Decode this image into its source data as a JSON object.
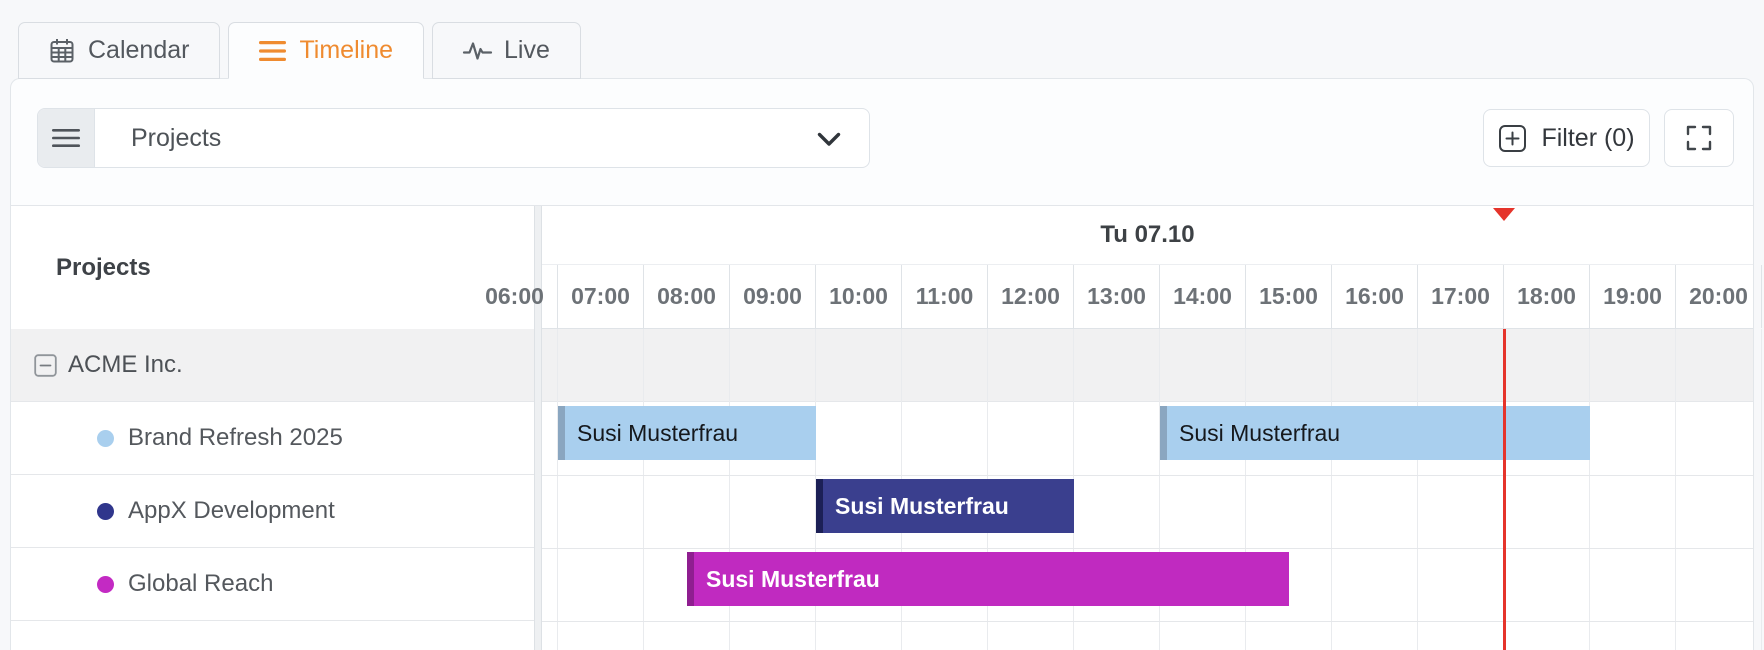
{
  "tabs": [
    {
      "label": "Calendar",
      "icon": "calendar-icon",
      "active": false
    },
    {
      "label": "Timeline",
      "icon": "timeline-icon",
      "active": true
    },
    {
      "label": "Live",
      "icon": "live-icon",
      "active": false
    }
  ],
  "toolbar": {
    "view_selector_value": "Projects",
    "filter_label": "Filter (0)",
    "filter_count": 0
  },
  "left_panel": {
    "title": "Projects",
    "group": {
      "name": "ACME Inc.",
      "expanded": true
    },
    "projects": [
      {
        "name": "Brand Refresh 2025",
        "color": "#a9cfee"
      },
      {
        "name": "AppX Development",
        "color": "#30368c"
      },
      {
        "name": "Global Reach",
        "color": "#c32ac3"
      }
    ]
  },
  "timeline": {
    "day_label": "Tu 07.10",
    "hours": [
      "06:00",
      "07:00",
      "08:00",
      "09:00",
      "10:00",
      "11:00",
      "12:00",
      "13:00",
      "14:00",
      "15:00",
      "16:00",
      "17:00",
      "18:00",
      "19:00",
      "20:00"
    ],
    "now_time": "18:00",
    "now_color": "#e5342b",
    "events": [
      {
        "project": "Brand Refresh 2025",
        "row": 0,
        "title": "Susi Musterfrau",
        "start": "07:00",
        "end": "10:00",
        "color": "#a9cfee",
        "accent": "#8aa6c0",
        "text_color": "#15181c",
        "text_weight": "400"
      },
      {
        "project": "AppX Development",
        "row": 1,
        "title": "Susi Musterfrau",
        "start": "10:00",
        "end": "13:00",
        "color": "#3a3f8e",
        "accent": "#1c2056",
        "text_color": "#ffffff",
        "text_weight": "600"
      },
      {
        "project": "Global Reach",
        "row": 2,
        "title": "Susi Musterfrau",
        "start": "08:30",
        "end": "15:30",
        "color": "#c02ac0",
        "accent": "#8f1e90",
        "text_color": "#ffffff",
        "text_weight": "600"
      },
      {
        "project": "Brand Refresh 2025",
        "row": 0,
        "title": "Susi Musterfrau",
        "start": "14:00",
        "end": "19:00",
        "color": "#a9cfee",
        "accent": "#8aa6c0",
        "text_color": "#15181c",
        "text_weight": "400"
      }
    ]
  }
}
